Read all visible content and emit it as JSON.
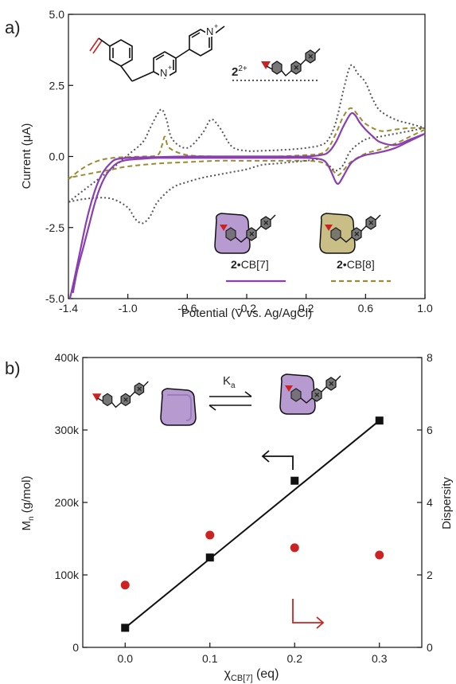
{
  "colors": {
    "cb7": "#8a3fb0",
    "cb8": "#9a8c30",
    "free": "#555555",
    "dispersity": "#cc2222",
    "mn": "#111111",
    "vinyl": "#cc2222",
    "cb7_fill": "#b79ad0",
    "cb8_fill": "#c9bf86"
  },
  "chart_data": [
    {
      "type": "line",
      "panel_label": "a)",
      "xlabel": "Potential (V vs. Ag/AgCl)",
      "ylabel": "Current (μA)",
      "xlim": [
        -1.4,
        1.0
      ],
      "ylim": [
        -5.0,
        5.0
      ],
      "x_ticks": [
        "-1.4",
        "-1.0",
        "-0.6",
        "-0.2",
        "0.2",
        "0.6",
        "1.0"
      ],
      "y_ticks": [
        "-5.0",
        "-2.5",
        "0.0",
        "2.5",
        "5.0"
      ],
      "grid": false,
      "legend": [
        {
          "label_bold": "2",
          "label_sup": "2+",
          "label_rest": "",
          "style": "dotted",
          "color_key": "free"
        },
        {
          "label_bold": "2",
          "label_sup": "",
          "label_rest": "•CB[7]",
          "style": "solid",
          "color_key": "cb7"
        },
        {
          "label_bold": "2",
          "label_sup": "",
          "label_rest": "•CB[8]",
          "style": "dashed",
          "color_key": "cb8"
        }
      ],
      "series": [
        {
          "name": "2²⁺",
          "style": "dotted",
          "forward": {
            "x": [
              -1.4,
              -1.3,
              -1.2,
              -1.1,
              -1.0,
              -0.9,
              -0.85,
              -0.8,
              -0.77,
              -0.74,
              -0.7,
              -0.6,
              -0.5,
              -0.44,
              -0.38,
              -0.3,
              -0.2,
              -0.1,
              0.0,
              0.1,
              0.2,
              0.3,
              0.35,
              0.4,
              0.45,
              0.5,
              0.55,
              0.6,
              0.65,
              0.7,
              0.8,
              0.9,
              1.0
            ],
            "y": [
              -1.6,
              -1.2,
              -0.8,
              -0.4,
              0.05,
              0.5,
              1.0,
              1.5,
              1.65,
              1.3,
              0.6,
              0.3,
              0.8,
              1.3,
              1.0,
              0.35,
              0.2,
              0.2,
              0.22,
              0.25,
              0.3,
              0.4,
              0.6,
              1.2,
              2.3,
              3.2,
              2.9,
              2.6,
              2.0,
              1.6,
              1.3,
              1.15,
              1.0
            ]
          },
          "reverse": {
            "x": [
              1.0,
              0.9,
              0.8,
              0.7,
              0.6,
              0.5,
              0.45,
              0.4,
              0.35,
              0.3,
              0.2,
              0.1,
              0.0,
              -0.1,
              -0.2,
              -0.3,
              -0.4,
              -0.5,
              -0.6,
              -0.7,
              -0.8,
              -0.85,
              -0.9,
              -0.95,
              -1.0,
              -1.1,
              -1.2,
              -1.3,
              -1.4
            ],
            "y": [
              1.0,
              0.9,
              0.8,
              0.7,
              0.6,
              0.2,
              -0.3,
              -0.5,
              -0.3,
              -0.1,
              -0.15,
              -0.2,
              -0.25,
              -0.3,
              -0.45,
              -0.55,
              -0.65,
              -0.75,
              -0.9,
              -1.1,
              -1.6,
              -2.1,
              -2.35,
              -2.2,
              -1.8,
              -1.5,
              -1.45,
              -1.5,
              -1.6
            ]
          }
        },
        {
          "name": "2•CB[7]",
          "style": "solid",
          "forward": {
            "x": [
              -1.39,
              -1.36,
              -1.32,
              -1.28,
              -1.24,
              -1.2,
              -1.16,
              -1.12,
              -1.08,
              -1.0,
              -0.9,
              -0.8,
              -0.6,
              -0.4,
              -0.2,
              0.0,
              0.2,
              0.3,
              0.35,
              0.4,
              0.45,
              0.5,
              0.53,
              0.56,
              0.6,
              0.65,
              0.7,
              0.8,
              0.9,
              1.0
            ],
            "y": [
              -5.0,
              -4.3,
              -3.3,
              -2.3,
              -1.5,
              -0.9,
              -0.5,
              -0.25,
              -0.1,
              -0.05,
              -0.03,
              -0.02,
              0.0,
              0.0,
              0.0,
              0.0,
              0.0,
              0.05,
              0.15,
              0.5,
              1.05,
              1.5,
              1.45,
              1.2,
              0.95,
              0.7,
              0.5,
              0.4,
              0.6,
              0.8
            ]
          },
          "reverse": {
            "x": [
              1.0,
              0.9,
              0.8,
              0.7,
              0.6,
              0.55,
              0.5,
              0.45,
              0.42,
              0.4,
              0.37,
              0.34,
              0.3,
              0.2,
              0.0,
              -0.2,
              -0.4,
              -0.6,
              -0.8,
              -0.9,
              -1.0,
              -1.06,
              -1.1,
              -1.14,
              -1.18,
              -1.22,
              -1.26,
              -1.3,
              -1.34,
              -1.37
            ],
            "y": [
              0.8,
              0.55,
              0.3,
              0.15,
              0.05,
              -0.05,
              -0.25,
              -0.7,
              -0.95,
              -0.9,
              -0.55,
              -0.25,
              -0.1,
              -0.05,
              -0.05,
              -0.05,
              -0.05,
              -0.05,
              -0.05,
              -0.08,
              -0.12,
              -0.2,
              -0.35,
              -0.6,
              -1.0,
              -1.6,
              -2.4,
              -3.2,
              -4.0,
              -4.8
            ]
          }
        },
        {
          "name": "2•CB[8]",
          "style": "dashed",
          "forward": {
            "x": [
              -1.4,
              -1.3,
              -1.2,
              -1.1,
              -1.0,
              -0.9,
              -0.8,
              -0.77,
              -0.75,
              -0.72,
              -0.6,
              -0.4,
              -0.2,
              0.0,
              0.2,
              0.3,
              0.35,
              0.4,
              0.45,
              0.5,
              0.55,
              0.6,
              0.7,
              0.8,
              0.9,
              1.0
            ],
            "y": [
              -0.8,
              -0.4,
              -0.15,
              -0.05,
              -0.02,
              0.0,
              0.05,
              0.4,
              0.7,
              0.3,
              0.05,
              0.0,
              0.0,
              0.0,
              0.05,
              0.1,
              0.3,
              0.8,
              1.4,
              1.7,
              1.45,
              1.15,
              0.9,
              0.95,
              1.0,
              1.0
            ]
          },
          "reverse": {
            "x": [
              1.0,
              0.9,
              0.8,
              0.7,
              0.6,
              0.5,
              0.45,
              0.42,
              0.4,
              0.35,
              0.3,
              0.2,
              0.0,
              -0.2,
              -0.4,
              -0.6,
              -0.8,
              -1.0,
              -1.1,
              -1.2,
              -1.3,
              -1.4
            ],
            "y": [
              0.95,
              0.7,
              0.45,
              0.25,
              0.1,
              -0.2,
              -0.5,
              -0.65,
              -0.6,
              -0.35,
              -0.2,
              -0.15,
              -0.15,
              -0.15,
              -0.15,
              -0.2,
              -0.25,
              -0.35,
              -0.45,
              -0.55,
              -0.65,
              -0.75
            ]
          }
        }
      ],
      "insets": [
        {
          "label_bold": "2",
          "label_sup": "2+",
          "label_rest": ""
        },
        {
          "label_bold": "2",
          "label_sup": "",
          "label_rest": "•CB[7]"
        },
        {
          "label_bold": "2",
          "label_sup": "",
          "label_rest": "•CB[8]"
        }
      ],
      "structure_charges": [
        "+",
        "+"
      ]
    },
    {
      "type": "scatter",
      "panel_label": "b)",
      "xlabel_main": "χ",
      "xlabel_sub": "CB[7]",
      "xlabel_rest": " (eq)",
      "ylabel_main": "M",
      "ylabel_sub": "n",
      "ylabel_rest": " (g/mol)",
      "y2label": "Dispersity",
      "xlim": [
        -0.05,
        0.35
      ],
      "ylim": [
        0,
        400000
      ],
      "y2lim": [
        0,
        8
      ],
      "x_ticks": [
        "0.0",
        "0.1",
        "0.2",
        "0.3"
      ],
      "y_ticks": [
        "0",
        "100k",
        "200k",
        "300k",
        "400k"
      ],
      "y2_ticks": [
        "0",
        "2",
        "4",
        "6",
        "8"
      ],
      "grid": false,
      "equilibrium_label_main": "K",
      "equilibrium_label_sub": "a",
      "series": [
        {
          "name": "Mn",
          "axis": "left",
          "marker": "square",
          "x": [
            0.0,
            0.1,
            0.2,
            0.3
          ],
          "y": [
            27000,
            124000,
            230000,
            313000
          ]
        },
        {
          "name": "Dispersity",
          "axis": "right",
          "marker": "circle",
          "x": [
            0.0,
            0.1,
            0.2,
            0.3
          ],
          "y": [
            1.72,
            3.1,
            2.75,
            2.55
          ]
        }
      ],
      "fit_line": {
        "axis": "left",
        "x": [
          0.0,
          0.3
        ],
        "y": [
          27000,
          313000
        ]
      }
    }
  ]
}
